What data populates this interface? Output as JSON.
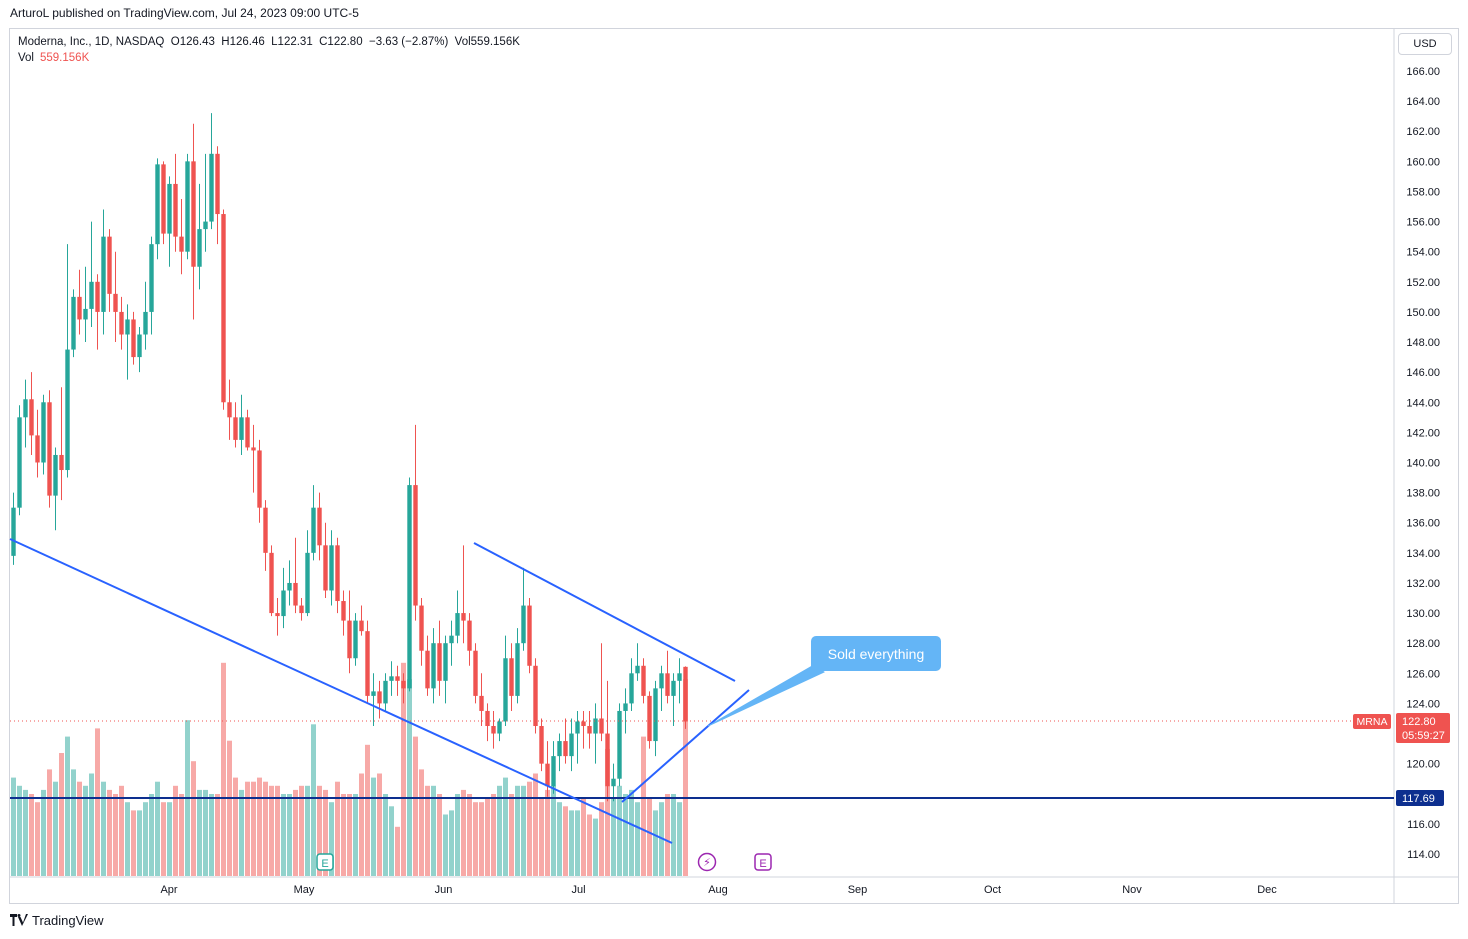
{
  "header": {
    "published_by": "ArturoL published on TradingView.com, Jul 24, 2023 09:00 UTC-5"
  },
  "legend": {
    "symbol": "Moderna, Inc., 1D, NASDAQ",
    "open": "O126.43",
    "high": "H126.46",
    "low": "L122.31",
    "close": "C122.80",
    "change": "−3.63 (−2.87%)",
    "volume": "Vol559.156K",
    "vol_label": "Vol",
    "vol_value": "559.156K"
  },
  "currency_button": "USD",
  "annotation": {
    "text": "Sold everything"
  },
  "price_badges": {
    "symbol": "MRNA",
    "last": "122.80",
    "countdown": "05:59:27",
    "support": "117.69"
  },
  "footer": {
    "brand": "TradingView"
  },
  "colors": {
    "up": "#26a69a",
    "down": "#ef5350",
    "trendline": "#2962ff",
    "support": "#0d2f8f",
    "callout": "#64b5f6"
  },
  "icons": [
    "tradingview-logo-icon",
    "earnings-icon",
    "dividend-lightning-icon"
  ],
  "chart_data": {
    "type": "candlestick",
    "title": "Moderna, Inc., 1D, NASDAQ",
    "y_axis": {
      "min": 113,
      "max": 167,
      "ticks": [
        "166.00",
        "164.00",
        "162.00",
        "160.00",
        "158.00",
        "156.00",
        "154.00",
        "152.00",
        "150.00",
        "148.00",
        "146.00",
        "144.00",
        "142.00",
        "140.00",
        "138.00",
        "136.00",
        "134.00",
        "132.00",
        "130.00",
        "128.00",
        "126.00",
        "124.00",
        "122.00",
        "120.00",
        "118.00",
        "116.00",
        "114.00"
      ]
    },
    "x_axis": {
      "labels": [
        {
          "label": "Apr",
          "date": "2023-04-01"
        },
        {
          "label": "May",
          "date": "2023-05-01"
        },
        {
          "label": "Jun",
          "date": "2023-06-01"
        },
        {
          "label": "Jul",
          "date": "2023-07-01"
        },
        {
          "label": "Aug",
          "date": "2023-08-01"
        },
        {
          "label": "Sep",
          "date": "2023-09-01"
        },
        {
          "label": "Oct",
          "date": "2023-10-01"
        },
        {
          "label": "Nov",
          "date": "2023-11-01"
        },
        {
          "label": "Dec",
          "date": "2023-12-01"
        }
      ]
    },
    "last_price": 122.8,
    "support_level": 117.69,
    "candles": [
      {
        "d": "2023-03-01",
        "o": 133.8,
        "h": 138.0,
        "l": 133.2,
        "c": 137.0,
        "v": 24
      },
      {
        "d": "2023-03-02",
        "o": 137.0,
        "h": 143.8,
        "l": 136.5,
        "c": 143.0,
        "v": 22
      },
      {
        "d": "2023-03-03",
        "o": 143.0,
        "h": 145.5,
        "l": 141.0,
        "c": 144.2,
        "v": 21
      },
      {
        "d": "2023-03-06",
        "o": 144.2,
        "h": 146.0,
        "l": 140.5,
        "c": 141.8,
        "v": 20
      },
      {
        "d": "2023-03-07",
        "o": 141.8,
        "h": 143.5,
        "l": 139.0,
        "c": 140.0,
        "v": 18
      },
      {
        "d": "2023-03-08",
        "o": 140.0,
        "h": 144.5,
        "l": 139.2,
        "c": 144.0,
        "v": 21
      },
      {
        "d": "2023-03-09",
        "o": 144.0,
        "h": 144.8,
        "l": 137.0,
        "c": 137.8,
        "v": 26
      },
      {
        "d": "2023-03-10",
        "o": 137.8,
        "h": 141.0,
        "l": 135.5,
        "c": 140.5,
        "v": 23
      },
      {
        "d": "2023-03-13",
        "o": 140.5,
        "h": 145.0,
        "l": 137.5,
        "c": 139.5,
        "v": 30
      },
      {
        "d": "2023-03-14",
        "o": 139.5,
        "h": 154.5,
        "l": 139.0,
        "c": 147.5,
        "v": 34
      },
      {
        "d": "2023-03-15",
        "o": 147.5,
        "h": 151.5,
        "l": 147.0,
        "c": 151.0,
        "v": 26
      },
      {
        "d": "2023-03-16",
        "o": 151.0,
        "h": 152.8,
        "l": 148.5,
        "c": 149.5,
        "v": 23
      },
      {
        "d": "2023-03-17",
        "o": 149.5,
        "h": 153.0,
        "l": 148.0,
        "c": 150.2,
        "v": 22
      },
      {
        "d": "2023-03-20",
        "o": 150.2,
        "h": 156.0,
        "l": 149.0,
        "c": 152.0,
        "v": 25
      },
      {
        "d": "2023-03-21",
        "o": 152.0,
        "h": 152.5,
        "l": 147.5,
        "c": 150.0,
        "v": 36
      },
      {
        "d": "2023-03-22",
        "o": 150.0,
        "h": 156.8,
        "l": 148.5,
        "c": 155.0,
        "v": 23
      },
      {
        "d": "2023-03-23",
        "o": 155.0,
        "h": 155.5,
        "l": 150.0,
        "c": 151.2,
        "v": 21
      },
      {
        "d": "2023-03-24",
        "o": 151.2,
        "h": 154.0,
        "l": 148.0,
        "c": 150.0,
        "v": 20
      },
      {
        "d": "2023-03-27",
        "o": 150.0,
        "h": 151.0,
        "l": 147.5,
        "c": 148.5,
        "v": 22
      },
      {
        "d": "2023-03-28",
        "o": 148.5,
        "h": 150.5,
        "l": 145.5,
        "c": 149.5,
        "v": 18
      },
      {
        "d": "2023-03-29",
        "o": 149.5,
        "h": 150.0,
        "l": 146.5,
        "c": 147.0,
        "v": 16
      },
      {
        "d": "2023-03-30",
        "o": 147.0,
        "h": 149.0,
        "l": 146.0,
        "c": 148.5,
        "v": 16
      },
      {
        "d": "2023-03-31",
        "o": 148.5,
        "h": 152.0,
        "l": 147.5,
        "c": 150.0,
        "v": 18
      },
      {
        "d": "2023-04-03",
        "o": 150.0,
        "h": 155.0,
        "l": 148.5,
        "c": 154.5,
        "v": 20
      },
      {
        "d": "2023-04-04",
        "o": 154.5,
        "h": 160.2,
        "l": 153.5,
        "c": 159.8,
        "v": 23
      },
      {
        "d": "2023-04-05",
        "o": 159.8,
        "h": 160.0,
        "l": 154.5,
        "c": 155.2,
        "v": 18
      },
      {
        "d": "2023-04-06",
        "o": 155.2,
        "h": 159.0,
        "l": 153.0,
        "c": 158.5,
        "v": 18
      },
      {
        "d": "2023-04-10",
        "o": 158.5,
        "h": 160.5,
        "l": 154.0,
        "c": 155.0,
        "v": 22
      },
      {
        "d": "2023-04-11",
        "o": 155.0,
        "h": 157.5,
        "l": 152.5,
        "c": 154.0,
        "v": 20
      },
      {
        "d": "2023-04-12",
        "o": 154.0,
        "h": 160.5,
        "l": 153.5,
        "c": 160.0,
        "v": 38
      },
      {
        "d": "2023-04-13",
        "o": 160.0,
        "h": 162.5,
        "l": 149.5,
        "c": 153.0,
        "v": 28
      },
      {
        "d": "2023-04-14",
        "o": 153.0,
        "h": 158.5,
        "l": 151.5,
        "c": 155.5,
        "v": 21
      },
      {
        "d": "2023-04-17",
        "o": 155.5,
        "h": 160.5,
        "l": 154.0,
        "c": 156.0,
        "v": 21
      },
      {
        "d": "2023-04-18",
        "o": 156.0,
        "h": 163.2,
        "l": 155.5,
        "c": 160.5,
        "v": 20
      },
      {
        "d": "2023-04-19",
        "o": 160.5,
        "h": 161.0,
        "l": 154.5,
        "c": 156.5,
        "v": 20
      },
      {
        "d": "2023-04-20",
        "o": 156.5,
        "h": 156.8,
        "l": 143.5,
        "c": 144.0,
        "v": 52
      },
      {
        "d": "2023-04-21",
        "o": 144.0,
        "h": 145.5,
        "l": 141.5,
        "c": 143.0,
        "v": 33
      },
      {
        "d": "2023-04-24",
        "o": 143.0,
        "h": 144.0,
        "l": 141.0,
        "c": 141.5,
        "v": 24
      },
      {
        "d": "2023-04-25",
        "o": 141.5,
        "h": 144.5,
        "l": 140.5,
        "c": 143.0,
        "v": 21
      },
      {
        "d": "2023-04-26",
        "o": 143.0,
        "h": 143.5,
        "l": 140.8,
        "c": 141.0,
        "v": 23
      },
      {
        "d": "2023-04-27",
        "o": 141.0,
        "h": 142.5,
        "l": 138.0,
        "c": 140.8,
        "v": 23
      },
      {
        "d": "2023-04-28",
        "o": 140.8,
        "h": 141.5,
        "l": 136.0,
        "c": 137.0,
        "v": 24
      },
      {
        "d": "2023-05-01",
        "o": 137.0,
        "h": 137.5,
        "l": 132.8,
        "c": 134.0,
        "v": 23
      },
      {
        "d": "2023-05-02",
        "o": 134.0,
        "h": 134.5,
        "l": 129.8,
        "c": 130.0,
        "v": 22
      },
      {
        "d": "2023-05-03",
        "o": 130.0,
        "h": 131.0,
        "l": 128.5,
        "c": 129.8,
        "v": 22
      },
      {
        "d": "2023-05-04",
        "o": 129.8,
        "h": 133.0,
        "l": 129.0,
        "c": 131.5,
        "v": 20
      },
      {
        "d": "2023-05-05",
        "o": 131.5,
        "h": 133.5,
        "l": 130.5,
        "c": 132.0,
        "v": 20
      },
      {
        "d": "2023-05-08",
        "o": 132.0,
        "h": 135.0,
        "l": 130.0,
        "c": 130.5,
        "v": 21
      },
      {
        "d": "2023-05-09",
        "o": 130.5,
        "h": 131.0,
        "l": 129.5,
        "c": 130.0,
        "v": 22
      },
      {
        "d": "2023-05-10",
        "o": 130.0,
        "h": 135.5,
        "l": 129.8,
        "c": 134.0,
        "v": 22
      },
      {
        "d": "2023-05-11",
        "o": 134.0,
        "h": 138.5,
        "l": 133.5,
        "c": 137.0,
        "v": 37
      },
      {
        "d": "2023-05-12",
        "o": 137.0,
        "h": 138.0,
        "l": 133.5,
        "c": 134.5,
        "v": 22
      },
      {
        "d": "2023-05-15",
        "o": 134.5,
        "h": 136.0,
        "l": 131.0,
        "c": 131.5,
        "v": 21
      },
      {
        "d": "2023-05-16",
        "o": 131.5,
        "h": 135.5,
        "l": 130.5,
        "c": 134.5,
        "v": 18
      },
      {
        "d": "2023-05-17",
        "o": 134.5,
        "h": 135.0,
        "l": 130.0,
        "c": 130.8,
        "v": 23
      },
      {
        "d": "2023-05-18",
        "o": 130.8,
        "h": 131.5,
        "l": 128.5,
        "c": 129.5,
        "v": 20
      },
      {
        "d": "2023-05-19",
        "o": 129.5,
        "h": 131.5,
        "l": 126.0,
        "c": 127.0,
        "v": 20
      },
      {
        "d": "2023-05-22",
        "o": 127.0,
        "h": 130.0,
        "l": 126.5,
        "c": 129.5,
        "v": 20
      },
      {
        "d": "2023-05-23",
        "o": 129.5,
        "h": 130.5,
        "l": 128.5,
        "c": 128.8,
        "v": 25
      },
      {
        "d": "2023-05-24",
        "o": 128.8,
        "h": 129.5,
        "l": 124.0,
        "c": 124.5,
        "v": 32
      },
      {
        "d": "2023-05-25",
        "o": 124.5,
        "h": 126.0,
        "l": 122.5,
        "c": 124.8,
        "v": 24
      },
      {
        "d": "2023-05-26",
        "o": 124.8,
        "h": 125.5,
        "l": 123.0,
        "c": 124.0,
        "v": 25
      },
      {
        "d": "2023-05-30",
        "o": 124.0,
        "h": 126.0,
        "l": 123.5,
        "c": 125.5,
        "v": 20
      },
      {
        "d": "2023-05-31",
        "o": 125.5,
        "h": 126.8,
        "l": 124.5,
        "c": 125.8,
        "v": 17
      },
      {
        "d": "2023-06-01",
        "o": 125.8,
        "h": 126.5,
        "l": 124.5,
        "c": 125.5,
        "v": 12
      },
      {
        "d": "2023-06-02",
        "o": 125.5,
        "h": 126.0,
        "l": 124.0,
        "c": 125.0,
        "v": 52
      },
      {
        "d": "2023-06-05",
        "o": 125.0,
        "h": 139.0,
        "l": 124.8,
        "c": 138.5,
        "v": 48
      },
      {
        "d": "2023-06-06",
        "o": 138.5,
        "h": 142.5,
        "l": 129.5,
        "c": 130.5,
        "v": 34
      },
      {
        "d": "2023-06-07",
        "o": 130.5,
        "h": 131.0,
        "l": 126.5,
        "c": 127.5,
        "v": 26
      },
      {
        "d": "2023-06-08",
        "o": 127.5,
        "h": 128.5,
        "l": 124.5,
        "c": 125.0,
        "v": 22
      },
      {
        "d": "2023-06-09",
        "o": 125.0,
        "h": 129.0,
        "l": 124.0,
        "c": 128.0,
        "v": 22
      },
      {
        "d": "2023-06-12",
        "o": 128.0,
        "h": 129.5,
        "l": 124.5,
        "c": 125.5,
        "v": 20
      },
      {
        "d": "2023-06-13",
        "o": 125.5,
        "h": 128.5,
        "l": 124.0,
        "c": 128.0,
        "v": 15
      },
      {
        "d": "2023-06-14",
        "o": 128.0,
        "h": 129.5,
        "l": 126.5,
        "c": 128.5,
        "v": 16
      },
      {
        "d": "2023-06-15",
        "o": 128.5,
        "h": 131.5,
        "l": 128.0,
        "c": 130.0,
        "v": 20
      },
      {
        "d": "2023-06-16",
        "o": 130.0,
        "h": 134.5,
        "l": 128.0,
        "c": 129.5,
        "v": 21
      },
      {
        "d": "2023-06-20",
        "o": 129.5,
        "h": 130.0,
        "l": 126.5,
        "c": 127.5,
        "v": 20
      },
      {
        "d": "2023-06-21",
        "o": 127.5,
        "h": 128.0,
        "l": 124.0,
        "c": 124.5,
        "v": 18
      },
      {
        "d": "2023-06-22",
        "o": 124.5,
        "h": 126.0,
        "l": 122.5,
        "c": 123.5,
        "v": 18
      },
      {
        "d": "2023-06-23",
        "o": 123.5,
        "h": 124.0,
        "l": 121.5,
        "c": 122.5,
        "v": 19
      },
      {
        "d": "2023-06-26",
        "o": 122.5,
        "h": 123.5,
        "l": 121.0,
        "c": 122.0,
        "v": 20
      },
      {
        "d": "2023-06-27",
        "o": 122.0,
        "h": 123.0,
        "l": 121.5,
        "c": 122.8,
        "v": 22
      },
      {
        "d": "2023-06-28",
        "o": 122.8,
        "h": 128.5,
        "l": 122.5,
        "c": 127.0,
        "v": 24
      },
      {
        "d": "2023-06-29",
        "o": 127.0,
        "h": 128.0,
        "l": 123.5,
        "c": 124.5,
        "v": 20
      },
      {
        "d": "2023-06-30",
        "o": 124.5,
        "h": 129.0,
        "l": 124.0,
        "c": 128.0,
        "v": 22
      },
      {
        "d": "2023-07-03",
        "o": 128.0,
        "h": 133.0,
        "l": 127.5,
        "c": 130.5,
        "v": 22
      },
      {
        "d": "2023-07-05",
        "o": 130.5,
        "h": 131.0,
        "l": 126.0,
        "c": 126.5,
        "v": 23
      },
      {
        "d": "2023-07-06",
        "o": 126.5,
        "h": 127.0,
        "l": 122.0,
        "c": 122.5,
        "v": 25
      },
      {
        "d": "2023-07-07",
        "o": 122.5,
        "h": 123.0,
        "l": 119.5,
        "c": 120.0,
        "v": 19
      },
      {
        "d": "2023-07-10",
        "o": 120.0,
        "h": 121.5,
        "l": 117.8,
        "c": 118.5,
        "v": 21
      },
      {
        "d": "2023-07-11",
        "o": 118.5,
        "h": 121.5,
        "l": 118.0,
        "c": 120.5,
        "v": 22
      },
      {
        "d": "2023-07-12",
        "o": 120.5,
        "h": 122.0,
        "l": 119.5,
        "c": 121.5,
        "v": 18
      },
      {
        "d": "2023-07-13",
        "o": 121.5,
        "h": 123.0,
        "l": 120.0,
        "c": 120.5,
        "v": 17
      },
      {
        "d": "2023-07-14",
        "o": 120.5,
        "h": 123.0,
        "l": 119.5,
        "c": 122.0,
        "v": 16
      },
      {
        "d": "2023-07-17",
        "o": 122.0,
        "h": 123.5,
        "l": 120.0,
        "c": 122.8,
        "v": 16
      },
      {
        "d": "2023-07-18",
        "o": 122.8,
        "h": 123.5,
        "l": 121.0,
        "c": 122.5,
        "v": 19
      },
      {
        "d": "2023-07-19",
        "o": 122.5,
        "h": 123.5,
        "l": 121.0,
        "c": 122.0,
        "v": 15
      },
      {
        "d": "2023-07-20",
        "o": 122.0,
        "h": 124.0,
        "l": 120.0,
        "c": 123.0,
        "v": 14
      },
      {
        "d": "2023-07-21",
        "o": 123.0,
        "h": 128.0,
        "l": 121.5,
        "c": 122.0,
        "v": 18
      },
      {
        "d": "2023-07-24",
        "o": 122.0,
        "h": 125.5,
        "l": 117.5,
        "c": 118.5,
        "v": 31
      },
      {
        "d": "2023-07-25",
        "o": 118.5,
        "h": 120.0,
        "l": 117.5,
        "c": 119.0,
        "v": 19
      },
      {
        "d": "2023-07-26",
        "o": 119.0,
        "h": 124.0,
        "l": 118.5,
        "c": 123.5,
        "v": 22
      },
      {
        "d": "2023-07-27",
        "o": 123.5,
        "h": 125.0,
        "l": 122.0,
        "c": 124.0,
        "v": 20
      },
      {
        "d": "2023-07-28",
        "o": 124.0,
        "h": 127.0,
        "l": 123.5,
        "c": 126.0,
        "v": 21
      },
      {
        "d": "2023-07-31",
        "o": 126.0,
        "h": 128.0,
        "l": 125.5,
        "c": 126.5,
        "v": 18
      },
      {
        "d": "2023-08-01",
        "o": 126.5,
        "h": 127.0,
        "l": 124.0,
        "c": 124.5,
        "v": 34
      },
      {
        "d": "2023-08-02",
        "o": 124.5,
        "h": 124.8,
        "l": 121.0,
        "c": 121.5,
        "v": 19
      },
      {
        "d": "2023-08-03",
        "o": 121.5,
        "h": 125.5,
        "l": 120.5,
        "c": 125.0,
        "v": 16
      },
      {
        "d": "2023-08-04",
        "o": 125.0,
        "h": 126.5,
        "l": 123.5,
        "c": 126.0,
        "v": 18
      },
      {
        "d": "2023-08-07",
        "o": 126.0,
        "h": 127.5,
        "l": 124.0,
        "c": 124.5,
        "v": 20
      },
      {
        "d": "2023-08-08",
        "o": 124.5,
        "h": 126.0,
        "l": 122.5,
        "c": 125.5,
        "v": 20
      },
      {
        "d": "2023-08-09",
        "o": 125.5,
        "h": 127.0,
        "l": 124.0,
        "c": 126.0,
        "v": 18
      },
      {
        "d": "2023-08-10",
        "o": 126.43,
        "h": 126.46,
        "l": 122.31,
        "c": 122.8,
        "v": 48
      }
    ]
  }
}
